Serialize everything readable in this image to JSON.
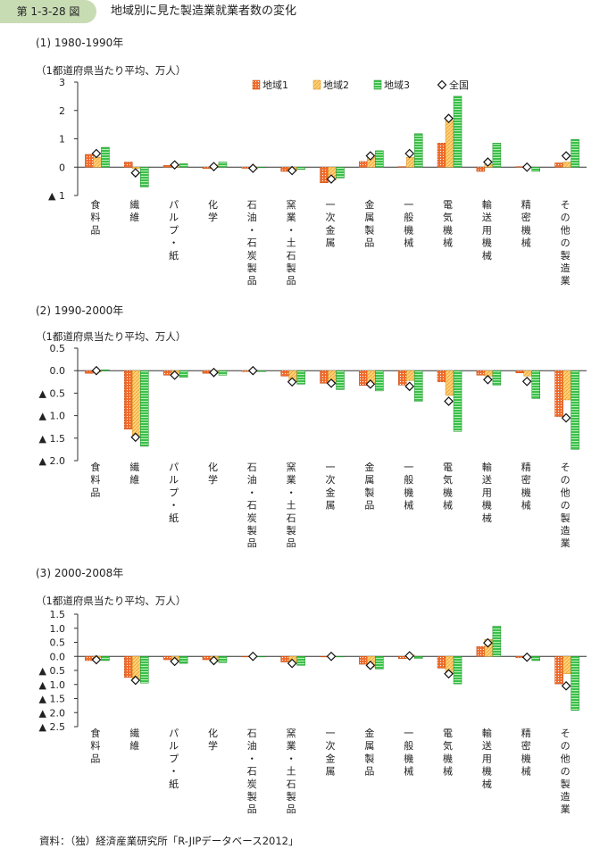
{
  "figure_label": "第 1-3-28 図",
  "figure_title": "地域別に見た製造業就業者数の変化",
  "source": "資料：（独）経済産業研究所「R-JIPデータベース2012」",
  "colors": {
    "region1": "#f06a2a",
    "region2": "#ffd27a",
    "region3": "#3cc04a",
    "badge": "#c8dcb4"
  },
  "chart_data": [
    {
      "type": "bar",
      "title": "(1) 1980-1990年",
      "ylabel": "（1都道府県当たり平均、万人）",
      "ylim": [
        -1,
        3
      ],
      "yticks": [
        3,
        2,
        1,
        0,
        -1
      ],
      "ytick_labels": [
        "3",
        "2",
        "1",
        "0",
        "▲ 1"
      ],
      "legend": "top-right",
      "categories": [
        "食料品",
        "繊維",
        "パルプ・紙",
        "化学",
        "石油・石炭製品",
        "窯業・土石製品",
        "一次金属",
        "金属製品",
        "一般機械",
        "電気機械",
        "輸送用機械",
        "精密機械",
        "その他の製造業"
      ],
      "series": [
        {
          "name": "地域1",
          "type": "bar",
          "values": [
            0.45,
            0.18,
            0.06,
            -0.05,
            -0.04,
            -0.15,
            -0.55,
            0.2,
            0.02,
            0.85,
            -0.15,
            0.02,
            0.15
          ]
        },
        {
          "name": "地域2",
          "type": "bar",
          "values": [
            0.35,
            -0.05,
            0.05,
            0.08,
            -0.03,
            -0.12,
            -0.45,
            0.42,
            0.35,
            1.65,
            0.1,
            -0.02,
            0.18
          ]
        },
        {
          "name": "地域3",
          "type": "bar",
          "values": [
            0.7,
            -0.7,
            0.12,
            0.18,
            -0.02,
            -0.08,
            -0.38,
            0.58,
            1.18,
            2.5,
            0.85,
            -0.15,
            0.98
          ]
        },
        {
          "name": "全国",
          "type": "marker",
          "values": [
            0.48,
            -0.2,
            0.08,
            0.02,
            -0.04,
            -0.12,
            -0.42,
            0.4,
            0.48,
            1.72,
            0.18,
            0.0,
            0.4
          ]
        }
      ]
    },
    {
      "type": "bar",
      "title": "(2) 1990-2000年",
      "ylabel": "（1都道府県当たり平均、万人）",
      "ylim": [
        -2.0,
        0.5
      ],
      "yticks": [
        0.5,
        0.0,
        -0.5,
        -1.0,
        -1.5,
        -2.0
      ],
      "ytick_labels": [
        "0.5",
        "0.0",
        "▲ 0.5",
        "▲ 1.0",
        "▲ 1.5",
        "▲ 2.0"
      ],
      "categories": [
        "食料品",
        "繊維",
        "パルプ・紙",
        "化学",
        "石油・石炭製品",
        "窯業・土石製品",
        "一次金属",
        "金属製品",
        "一般機械",
        "電気機械",
        "輸送用機械",
        "精密機械",
        "その他の製造業"
      ],
      "series": [
        {
          "name": "地域1",
          "type": "bar",
          "values": [
            -0.06,
            -1.3,
            -0.1,
            -0.06,
            -0.02,
            -0.12,
            -0.28,
            -0.33,
            -0.32,
            -0.25,
            -0.1,
            -0.05,
            -1.02
          ]
        },
        {
          "name": "地域2",
          "type": "bar",
          "values": [
            -0.03,
            -1.45,
            -0.08,
            -0.05,
            -0.02,
            -0.25,
            -0.3,
            -0.3,
            -0.22,
            -0.55,
            -0.12,
            -0.12,
            -0.65
          ]
        },
        {
          "name": "地域3",
          "type": "bar",
          "values": [
            0.02,
            -1.68,
            -0.15,
            -0.1,
            -0.02,
            -0.3,
            -0.42,
            -0.45,
            -0.68,
            -1.35,
            -0.32,
            -0.62,
            -1.75
          ]
        },
        {
          "name": "全国",
          "type": "marker",
          "values": [
            0.0,
            -1.48,
            -0.1,
            -0.04,
            0.0,
            -0.25,
            -0.28,
            -0.3,
            -0.35,
            -0.68,
            -0.2,
            -0.24,
            -1.05
          ]
        }
      ]
    },
    {
      "type": "bar",
      "title": "(3) 2000-2008年",
      "ylabel": "（1都道府県当たり平均、万人）",
      "ylim": [
        -2.5,
        1.5
      ],
      "yticks": [
        1.5,
        1.0,
        0.5,
        0.0,
        -0.5,
        -1.0,
        -1.5,
        -2.0,
        -2.5
      ],
      "ytick_labels": [
        "1.5",
        "1.0",
        "0.5",
        "0.0",
        "▲ 0.5",
        "▲ 1.0",
        "▲ 1.5",
        "▲ 2.0",
        "▲ 2.5"
      ],
      "categories": [
        "食料品",
        "繊維",
        "パルプ・紙",
        "化学",
        "石油・石炭製品",
        "窯業・土石製品",
        "一次金属",
        "金属製品",
        "一般機械",
        "電気機械",
        "輸送用機械",
        "精密機械",
        "その他の製造業"
      ],
      "series": [
        {
          "name": "地域1",
          "type": "bar",
          "values": [
            -0.15,
            -0.75,
            -0.12,
            -0.12,
            -0.02,
            -0.2,
            -0.02,
            -0.28,
            -0.08,
            -0.42,
            0.35,
            -0.05,
            -0.98
          ]
        },
        {
          "name": "地域2",
          "type": "bar",
          "values": [
            -0.05,
            -0.85,
            -0.15,
            -0.18,
            -0.02,
            -0.25,
            -0.02,
            -0.38,
            0.05,
            -0.62,
            0.6,
            -0.05,
            -0.62
          ]
        },
        {
          "name": "地域3",
          "type": "bar",
          "values": [
            -0.15,
            -0.95,
            -0.25,
            -0.22,
            -0.02,
            -0.32,
            -0.02,
            -0.45,
            -0.08,
            -0.98,
            1.08,
            -0.15,
            -1.92
          ]
        },
        {
          "name": "全国",
          "type": "marker",
          "values": [
            -0.12,
            -0.85,
            -0.18,
            -0.15,
            0.0,
            -0.25,
            0.0,
            -0.32,
            0.02,
            -0.62,
            0.48,
            -0.03,
            -1.05
          ]
        }
      ]
    }
  ]
}
